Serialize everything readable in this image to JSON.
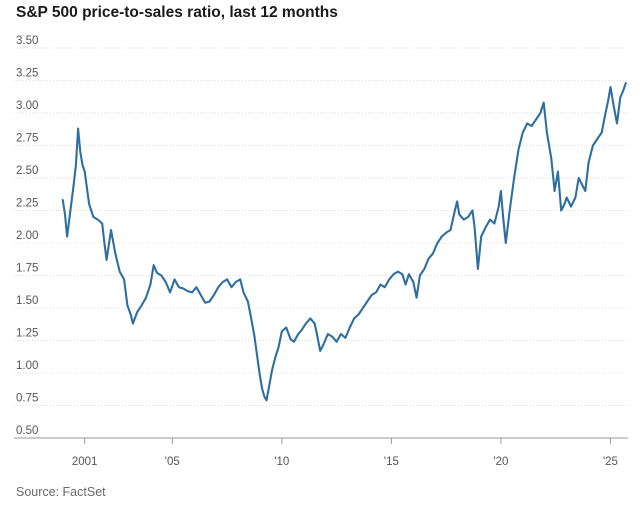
{
  "chart_data": {
    "type": "line",
    "title": "S&P 500 price-to-sales ratio, last 12 months",
    "xlabel": "",
    "ylabel": "",
    "source": "Source: FactSet",
    "ylim": [
      0.5,
      3.5
    ],
    "xlim": [
      1999.6,
      2025.8
    ],
    "grid": true,
    "legend": "none",
    "line_color": "#2f6f9f",
    "y_ticks": [
      {
        "value": 3.5,
        "label": "3.50"
      },
      {
        "value": 3.25,
        "label": "3.25"
      },
      {
        "value": 3.0,
        "label": "3.00"
      },
      {
        "value": 2.75,
        "label": "2.75"
      },
      {
        "value": 2.5,
        "label": "2.50"
      },
      {
        "value": 2.25,
        "label": "2.25"
      },
      {
        "value": 2.0,
        "label": "2.00"
      },
      {
        "value": 1.75,
        "label": "1.75"
      },
      {
        "value": 1.5,
        "label": "1.50"
      },
      {
        "value": 1.25,
        "label": "1.25"
      },
      {
        "value": 1.0,
        "label": "1.00"
      },
      {
        "value": 0.75,
        "label": "0.75"
      },
      {
        "value": 0.5,
        "label": "0.50"
      }
    ],
    "x_ticks": [
      {
        "value": 2001,
        "label": "2001"
      },
      {
        "value": 2005,
        "label": "'05"
      },
      {
        "value": 2010,
        "label": "'10"
      },
      {
        "value": 2015,
        "label": "'15"
      },
      {
        "value": 2020,
        "label": "'20"
      },
      {
        "value": 2025,
        "label": "'25"
      }
    ],
    "series": [
      {
        "points": [
          [
            2000.0,
            2.33
          ],
          [
            2000.1,
            2.22
          ],
          [
            2000.2,
            2.05
          ],
          [
            2000.35,
            2.25
          ],
          [
            2000.5,
            2.45
          ],
          [
            2000.6,
            2.6
          ],
          [
            2000.7,
            2.88
          ],
          [
            2000.8,
            2.7
          ],
          [
            2000.9,
            2.6
          ],
          [
            2001.0,
            2.55
          ],
          [
            2001.2,
            2.3
          ],
          [
            2001.4,
            2.2
          ],
          [
            2001.6,
            2.18
          ],
          [
            2001.8,
            2.15
          ],
          [
            2001.9,
            2.0
          ],
          [
            2002.0,
            1.87
          ],
          [
            2002.2,
            2.1
          ],
          [
            2002.4,
            1.92
          ],
          [
            2002.6,
            1.78
          ],
          [
            2002.8,
            1.72
          ],
          [
            2002.95,
            1.52
          ],
          [
            2003.1,
            1.45
          ],
          [
            2003.2,
            1.38
          ],
          [
            2003.4,
            1.47
          ],
          [
            2003.6,
            1.52
          ],
          [
            2003.8,
            1.58
          ],
          [
            2004.0,
            1.68
          ],
          [
            2004.15,
            1.83
          ],
          [
            2004.3,
            1.77
          ],
          [
            2004.5,
            1.75
          ],
          [
            2004.7,
            1.7
          ],
          [
            2004.9,
            1.62
          ],
          [
            2005.1,
            1.72
          ],
          [
            2005.3,
            1.66
          ],
          [
            2005.5,
            1.65
          ],
          [
            2005.7,
            1.63
          ],
          [
            2005.9,
            1.62
          ],
          [
            2006.1,
            1.66
          ],
          [
            2006.3,
            1.6
          ],
          [
            2006.5,
            1.54
          ],
          [
            2006.7,
            1.55
          ],
          [
            2006.9,
            1.6
          ],
          [
            2007.1,
            1.66
          ],
          [
            2007.3,
            1.7
          ],
          [
            2007.5,
            1.72
          ],
          [
            2007.7,
            1.66
          ],
          [
            2007.9,
            1.7
          ],
          [
            2008.1,
            1.72
          ],
          [
            2008.25,
            1.62
          ],
          [
            2008.45,
            1.55
          ],
          [
            2008.6,
            1.42
          ],
          [
            2008.75,
            1.28
          ],
          [
            2008.9,
            1.1
          ],
          [
            2009.0,
            0.98
          ],
          [
            2009.1,
            0.88
          ],
          [
            2009.2,
            0.82
          ],
          [
            2009.3,
            0.79
          ],
          [
            2009.4,
            0.88
          ],
          [
            2009.55,
            1.02
          ],
          [
            2009.7,
            1.12
          ],
          [
            2009.85,
            1.2
          ],
          [
            2010.0,
            1.32
          ],
          [
            2010.2,
            1.35
          ],
          [
            2010.4,
            1.26
          ],
          [
            2010.55,
            1.24
          ],
          [
            2010.75,
            1.3
          ],
          [
            2010.9,
            1.33
          ],
          [
            2011.1,
            1.38
          ],
          [
            2011.3,
            1.42
          ],
          [
            2011.5,
            1.38
          ],
          [
            2011.6,
            1.3
          ],
          [
            2011.75,
            1.17
          ],
          [
            2011.9,
            1.22
          ],
          [
            2012.1,
            1.3
          ],
          [
            2012.3,
            1.28
          ],
          [
            2012.5,
            1.24
          ],
          [
            2012.7,
            1.3
          ],
          [
            2012.9,
            1.27
          ],
          [
            2013.1,
            1.35
          ],
          [
            2013.3,
            1.42
          ],
          [
            2013.5,
            1.45
          ],
          [
            2013.7,
            1.5
          ],
          [
            2013.9,
            1.55
          ],
          [
            2014.1,
            1.6
          ],
          [
            2014.3,
            1.62
          ],
          [
            2014.5,
            1.68
          ],
          [
            2014.7,
            1.66
          ],
          [
            2014.9,
            1.72
          ],
          [
            2015.1,
            1.76
          ],
          [
            2015.3,
            1.78
          ],
          [
            2015.5,
            1.76
          ],
          [
            2015.65,
            1.68
          ],
          [
            2015.8,
            1.76
          ],
          [
            2016.0,
            1.7
          ],
          [
            2016.15,
            1.58
          ],
          [
            2016.3,
            1.75
          ],
          [
            2016.5,
            1.8
          ],
          [
            2016.7,
            1.88
          ],
          [
            2016.9,
            1.92
          ],
          [
            2017.1,
            2.0
          ],
          [
            2017.3,
            2.05
          ],
          [
            2017.5,
            2.08
          ],
          [
            2017.7,
            2.1
          ],
          [
            2017.9,
            2.25
          ],
          [
            2018.0,
            2.32
          ],
          [
            2018.1,
            2.22
          ],
          [
            2018.3,
            2.18
          ],
          [
            2018.5,
            2.2
          ],
          [
            2018.7,
            2.25
          ],
          [
            2018.8,
            2.12
          ],
          [
            2018.95,
            1.8
          ],
          [
            2019.1,
            2.05
          ],
          [
            2019.3,
            2.12
          ],
          [
            2019.5,
            2.18
          ],
          [
            2019.7,
            2.15
          ],
          [
            2019.9,
            2.28
          ],
          [
            2020.0,
            2.4
          ],
          [
            2020.1,
            2.2
          ],
          [
            2020.22,
            2.0
          ],
          [
            2020.4,
            2.25
          ],
          [
            2020.6,
            2.5
          ],
          [
            2020.8,
            2.72
          ],
          [
            2021.0,
            2.85
          ],
          [
            2021.2,
            2.92
          ],
          [
            2021.4,
            2.9
          ],
          [
            2021.6,
            2.95
          ],
          [
            2021.8,
            3.0
          ],
          [
            2021.95,
            3.08
          ],
          [
            2022.1,
            2.85
          ],
          [
            2022.3,
            2.65
          ],
          [
            2022.45,
            2.4
          ],
          [
            2022.6,
            2.55
          ],
          [
            2022.75,
            2.25
          ],
          [
            2022.9,
            2.3
          ],
          [
            2023.0,
            2.35
          ],
          [
            2023.2,
            2.28
          ],
          [
            2023.4,
            2.35
          ],
          [
            2023.55,
            2.5
          ],
          [
            2023.7,
            2.45
          ],
          [
            2023.85,
            2.4
          ],
          [
            2024.0,
            2.62
          ],
          [
            2024.2,
            2.75
          ],
          [
            2024.4,
            2.8
          ],
          [
            2024.6,
            2.85
          ],
          [
            2024.75,
            2.98
          ],
          [
            2024.9,
            3.1
          ],
          [
            2025.0,
            3.2
          ],
          [
            2025.15,
            3.05
          ],
          [
            2025.3,
            2.92
          ],
          [
            2025.45,
            3.12
          ],
          [
            2025.6,
            3.18
          ],
          [
            2025.7,
            3.23
          ]
        ]
      }
    ]
  }
}
